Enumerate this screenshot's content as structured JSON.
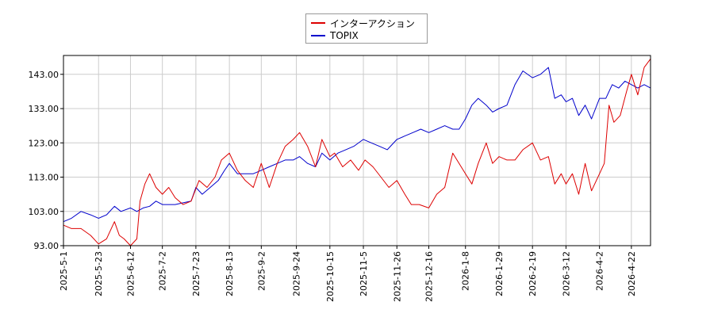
{
  "chart_data": {
    "type": "line",
    "title": "",
    "xlabel": "",
    "ylabel": "",
    "ylim": [
      93,
      148.5
    ],
    "xlim": [
      "2025-05-01",
      "2026-05-04"
    ],
    "grid": true,
    "legend_position": "top-center",
    "y_ticks": [
      "93.00",
      "103.00",
      "113.00",
      "123.00",
      "133.00",
      "143.00"
    ],
    "x_ticks": [
      "2025-5-1",
      "2025-5-23",
      "2025-6-12",
      "2025-7-2",
      "2025-7-23",
      "2025-8-13",
      "2025-9-2",
      "2025-9-24",
      "2025-10-15",
      "2025-11-5",
      "2025-11-26",
      "2025-12-16",
      "2026-1-8",
      "2026-1-29",
      "2026-2-19",
      "2026-3-12",
      "2026-4-2",
      "2026-4-22"
    ],
    "series": [
      {
        "name": "インターアクション",
        "color": "#dd0000",
        "x": [
          "2025-05-01",
          "2025-05-06",
          "2025-05-12",
          "2025-05-18",
          "2025-05-23",
          "2025-05-28",
          "2025-06-02",
          "2025-06-05",
          "2025-06-08",
          "2025-06-12",
          "2025-06-16",
          "2025-06-18",
          "2025-06-21",
          "2025-06-24",
          "2025-06-28",
          "2025-07-02",
          "2025-07-06",
          "2025-07-10",
          "2025-07-15",
          "2025-07-20",
          "2025-07-25",
          "2025-07-30",
          "2025-08-04",
          "2025-08-08",
          "2025-08-13",
          "2025-08-18",
          "2025-08-23",
          "2025-08-28",
          "2025-09-02",
          "2025-09-07",
          "2025-09-12",
          "2025-09-17",
          "2025-09-22",
          "2025-09-26",
          "2025-10-01",
          "2025-10-06",
          "2025-10-10",
          "2025-10-15",
          "2025-10-18",
          "2025-10-23",
          "2025-10-28",
          "2025-11-02",
          "2025-11-06",
          "2025-11-11",
          "2025-11-16",
          "2025-11-21",
          "2025-11-26",
          "2025-12-01",
          "2025-12-05",
          "2025-12-10",
          "2025-12-16",
          "2025-12-21",
          "2025-12-26",
          "2025-12-31",
          "2026-01-04",
          "2026-01-08",
          "2026-01-12",
          "2026-01-16",
          "2026-01-21",
          "2026-01-25",
          "2026-01-29",
          "2026-02-03",
          "2026-02-08",
          "2026-02-13",
          "2026-02-19",
          "2026-02-24",
          "2026-03-01",
          "2026-03-05",
          "2026-03-09",
          "2026-03-12",
          "2026-03-16",
          "2026-03-20",
          "2026-03-24",
          "2026-03-28",
          "2026-04-02",
          "2026-04-05",
          "2026-04-08",
          "2026-04-11",
          "2026-04-15",
          "2026-04-19",
          "2026-04-22",
          "2026-04-26",
          "2026-04-30",
          "2026-05-04"
        ],
        "values": [
          99,
          98,
          98,
          96,
          93.5,
          95,
          100,
          96,
          95,
          93,
          95,
          106,
          111,
          114,
          110,
          108,
          110,
          107,
          105,
          106,
          112,
          110,
          113,
          118,
          120,
          115,
          112,
          110,
          117,
          110,
          117,
          122,
          124,
          126,
          122,
          116,
          124,
          119,
          120,
          116,
          118,
          115,
          118,
          116,
          113,
          110,
          112,
          108,
          105,
          105,
          104,
          108,
          110,
          120,
          117,
          114,
          111,
          117,
          123,
          117,
          119,
          118,
          118,
          121,
          123,
          118,
          119,
          111,
          114,
          111,
          114,
          108,
          117,
          109,
          114,
          117,
          134,
          129,
          131,
          138,
          143,
          137,
          145,
          147.5
        ]
      },
      {
        "name": "TOPIX",
        "color": "#0000cc",
        "x": [
          "2025-05-01",
          "2025-05-06",
          "2025-05-12",
          "2025-05-18",
          "2025-05-23",
          "2025-05-28",
          "2025-06-02",
          "2025-06-06",
          "2025-06-12",
          "2025-06-16",
          "2025-06-20",
          "2025-06-24",
          "2025-06-28",
          "2025-07-02",
          "2025-07-06",
          "2025-07-10",
          "2025-07-15",
          "2025-07-20",
          "2025-07-23",
          "2025-07-27",
          "2025-08-01",
          "2025-08-06",
          "2025-08-10",
          "2025-08-13",
          "2025-08-18",
          "2025-08-23",
          "2025-08-28",
          "2025-09-02",
          "2025-09-07",
          "2025-09-12",
          "2025-09-17",
          "2025-09-22",
          "2025-09-26",
          "2025-10-01",
          "2025-10-06",
          "2025-10-10",
          "2025-10-15",
          "2025-10-20",
          "2025-10-25",
          "2025-10-30",
          "2025-11-05",
          "2025-11-10",
          "2025-11-15",
          "2025-11-20",
          "2025-11-26",
          "2025-12-01",
          "2025-12-06",
          "2025-12-11",
          "2025-12-16",
          "2025-12-21",
          "2025-12-26",
          "2025-12-31",
          "2026-01-04",
          "2026-01-08",
          "2026-01-12",
          "2026-01-16",
          "2026-01-21",
          "2026-01-25",
          "2026-01-29",
          "2026-02-03",
          "2026-02-08",
          "2026-02-13",
          "2026-02-19",
          "2026-02-24",
          "2026-03-01",
          "2026-03-05",
          "2026-03-09",
          "2026-03-12",
          "2026-03-16",
          "2026-03-20",
          "2026-03-24",
          "2026-03-28",
          "2026-04-02",
          "2026-04-06",
          "2026-04-10",
          "2026-04-14",
          "2026-04-18",
          "2026-04-22",
          "2026-04-26",
          "2026-04-30",
          "2026-05-04"
        ],
        "values": [
          100,
          101,
          103,
          102,
          101,
          102,
          104.5,
          103,
          104,
          103,
          104,
          104.5,
          106,
          105,
          105,
          105,
          105.5,
          106,
          110,
          108,
          110,
          112,
          115,
          117,
          114,
          114,
          114,
          115,
          116,
          117,
          118,
          118,
          119,
          117,
          116,
          120,
          118,
          120,
          121,
          122,
          124,
          123,
          122,
          121,
          124,
          125,
          126,
          127,
          126,
          127,
          128,
          127,
          127,
          130,
          134,
          136,
          134,
          132,
          133,
          134,
          140,
          144,
          142,
          143,
          145,
          136,
          137,
          135,
          136,
          131,
          134,
          130,
          136,
          136,
          140,
          139,
          141,
          140,
          139,
          140,
          139
        ]
      }
    ]
  }
}
